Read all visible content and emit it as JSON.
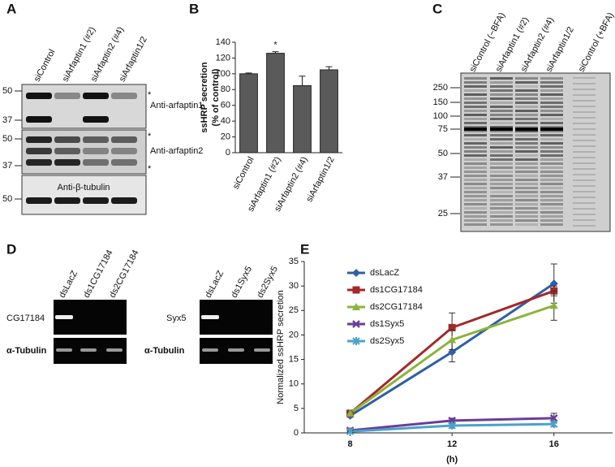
{
  "panel_a": {
    "letter": "A",
    "lanes": [
      "siControl",
      "siArfaptin1 (#2)",
      "siArfaptin2 (#4)",
      "siArfaptin1/2"
    ],
    "blots": [
      {
        "label": "Anti-arfaptin1",
        "markers": [
          "50",
          "37"
        ],
        "asterisks": [
          "*"
        ]
      },
      {
        "label": "Anti-arfaptin2",
        "markers": [
          "50",
          "37"
        ],
        "asterisks": [
          "*",
          "*"
        ]
      },
      {
        "label": "Anti-β-tubulin",
        "markers": [
          "50"
        ]
      }
    ]
  },
  "panel_c": {
    "letter": "C",
    "lanes": [
      "siControl (−BFA)",
      "siArfaptin1 (#2)",
      "siArfaptin2 (#4)",
      "siArfaptin1/2",
      "siControl (+BFA)"
    ],
    "markers": [
      "250",
      "150",
      "100",
      "75",
      "50",
      "37",
      "25"
    ]
  },
  "panel_d": {
    "letter": "D",
    "gels": [
      {
        "lanes": [
          "dsLacZ",
          "ds1CG17184",
          "ds2CG17184"
        ],
        "rows": [
          "CG17184",
          "α-Tubulin"
        ]
      },
      {
        "lanes": [
          "dsLacZ",
          "ds1Syx5",
          "ds2Syx5"
        ],
        "rows": [
          "Syx5",
          "α-Tubulin"
        ]
      }
    ]
  },
  "chart_data": [
    {
      "type": "bar",
      "letter": "B",
      "y_label": [
        "ssHRP secretion",
        "(% of control)"
      ],
      "categories": [
        "siControl",
        "siArfaptin1 (#2)",
        "siArfaptin2 (#4)",
        "siArfaptin1/2"
      ],
      "values": [
        100,
        126,
        85,
        105
      ],
      "errors": [
        1,
        2,
        12,
        4
      ],
      "color": "#5a5a5a",
      "annotations": [
        {
          "category": 1,
          "text": "*"
        }
      ],
      "ylim": [
        0,
        140
      ],
      "yticks": [
        0,
        20,
        40,
        60,
        80,
        100,
        120,
        140
      ]
    },
    {
      "type": "line",
      "letter": "E",
      "x_label": "(h)",
      "y_label": "Normalized ssHRP secretion",
      "x": [
        8,
        12,
        16
      ],
      "xlim": [
        6.2,
        18.3
      ],
      "xticks": [
        8,
        12,
        16
      ],
      "ylim": [
        0,
        35
      ],
      "yticks": [
        0,
        5,
        10,
        15,
        20,
        25,
        30,
        35
      ],
      "legend": "upper-left",
      "series": [
        {
          "name": "dsLacZ",
          "color": "#2f5fa7",
          "marker": "diamond",
          "values": [
            3.5,
            16.5,
            30.5
          ],
          "errors": [
            0.3,
            2,
            4
          ]
        },
        {
          "name": "ds1CG17184",
          "color": "#a3282a",
          "marker": "square",
          "values": [
            4,
            21.5,
            29
          ],
          "errors": [
            0.3,
            3,
            1
          ]
        },
        {
          "name": "ds2CG17184",
          "color": "#8cb33a",
          "marker": "triangle",
          "values": [
            4,
            19,
            26
          ],
          "errors": [
            0.3,
            2,
            3
          ]
        },
        {
          "name": "ds1Syx5",
          "color": "#6a3d98",
          "marker": "x",
          "values": [
            0.5,
            2.5,
            3
          ],
          "errors": [
            0.2,
            0.5,
            1
          ]
        },
        {
          "name": "ds2Syx5",
          "color": "#49a3c8",
          "marker": "asterisk",
          "values": [
            0.3,
            1.5,
            1.8
          ],
          "errors": [
            0.2,
            0.5,
            0.5
          ]
        }
      ]
    }
  ]
}
